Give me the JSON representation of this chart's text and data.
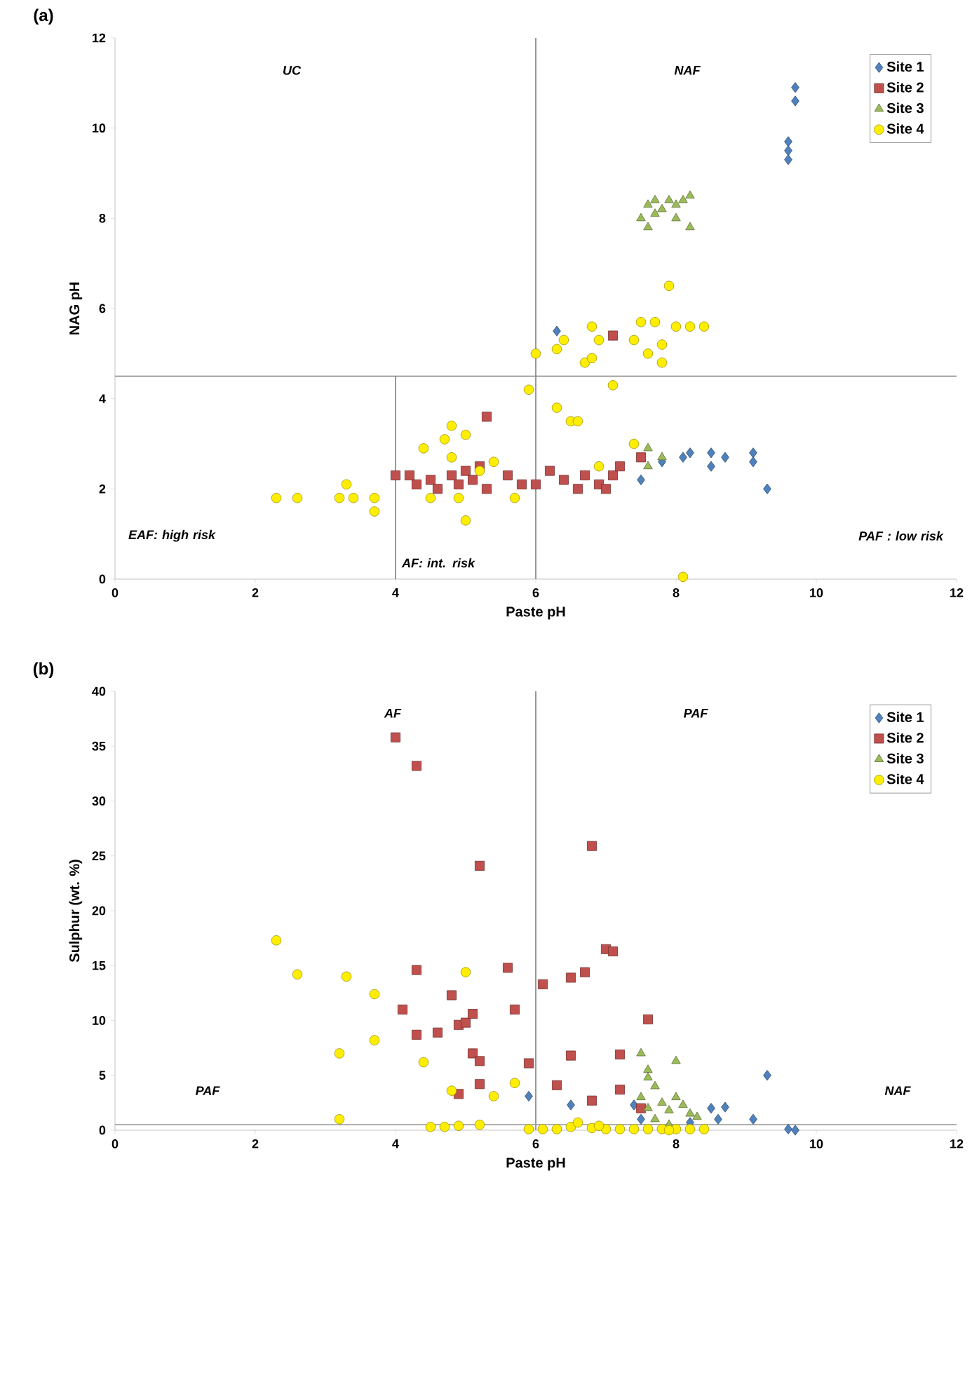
{
  "chart_data": [
    {
      "type": "scatter",
      "title": "(a)",
      "xlabel": "Paste pH",
      "ylabel": "NAG pH",
      "xlim": [
        0,
        12
      ],
      "ylim": [
        0,
        12
      ],
      "xticks": [
        0,
        2,
        4,
        6,
        8,
        10,
        12
      ],
      "yticks": [
        0,
        2,
        4,
        6,
        8,
        10,
        12
      ],
      "legend": "top right",
      "ref_lines": [
        {
          "axis": "x",
          "value": 6,
          "color": "#808080"
        },
        {
          "axis": "y",
          "value": 4.5,
          "color": "#808080"
        },
        {
          "axis": "x",
          "value": 4,
          "color": "#808080"
        }
      ],
      "annotations": [
        "UC",
        "NAF",
        "EAF: high risk",
        "AF: int. risk",
        "PAF : low risk"
      ],
      "series": [
        {
          "name": "Site 1",
          "color": "#4f81bd",
          "marker": "diamond",
          "x": [
            9.7,
            9.7,
            9.6,
            9.6,
            9.6,
            6.3,
            7.5,
            7.8,
            8.1,
            8.2,
            8.5,
            8.5,
            8.7,
            9.1,
            9.1,
            9.3
          ],
          "values": [
            10.9,
            10.6,
            9.7,
            9.5,
            9.3,
            5.5,
            2.2,
            2.6,
            2.7,
            2.8,
            2.8,
            2.5,
            2.7,
            2.8,
            2.6,
            2.0
          ]
        },
        {
          "name": "Site 2",
          "color": "#c0504d",
          "marker": "square",
          "x": [
            4.0,
            4.2,
            4.3,
            4.5,
            4.6,
            4.8,
            4.9,
            5.0,
            5.1,
            5.2,
            5.3,
            5.3,
            5.6,
            5.8,
            6.0,
            6.2,
            6.4,
            6.6,
            6.7,
            6.9,
            7.0,
            7.1,
            7.2,
            7.5,
            7.1
          ],
          "values": [
            2.3,
            2.3,
            2.1,
            2.2,
            2.0,
            2.3,
            2.1,
            2.4,
            2.2,
            2.5,
            2.0,
            3.6,
            2.3,
            2.1,
            2.1,
            2.4,
            2.2,
            2.0,
            2.3,
            2.1,
            2.0,
            2.3,
            2.5,
            2.7,
            5.4
          ]
        },
        {
          "name": "Site 3",
          "color": "#9bbb59",
          "marker": "triangle",
          "x": [
            7.5,
            7.6,
            7.6,
            7.7,
            7.8,
            7.9,
            8.0,
            8.0,
            8.1,
            8.2,
            8.2,
            7.7,
            7.6,
            7.6,
            7.8
          ],
          "values": [
            8.0,
            8.3,
            7.8,
            8.4,
            8.2,
            8.4,
            8.0,
            8.3,
            8.4,
            8.5,
            7.8,
            8.1,
            2.9,
            2.5,
            2.7
          ]
        },
        {
          "name": "Site 4",
          "color": "#ffee00",
          "marker": "circle",
          "x": [
            2.3,
            2.6,
            3.2,
            3.3,
            3.4,
            3.7,
            3.7,
            4.4,
            4.5,
            4.7,
            4.8,
            4.8,
            4.9,
            5.0,
            5.0,
            5.2,
            5.4,
            5.7,
            5.9,
            6.0,
            6.3,
            6.3,
            6.4,
            6.5,
            6.6,
            6.7,
            6.8,
            6.8,
            6.9,
            6.9,
            7.1,
            7.4,
            7.4,
            7.5,
            7.6,
            7.7,
            7.8,
            7.8,
            7.9,
            8.0,
            8.2,
            8.4,
            8.1
          ],
          "values": [
            1.8,
            1.8,
            1.8,
            2.1,
            1.8,
            1.8,
            1.5,
            2.9,
            1.8,
            3.1,
            3.4,
            2.7,
            1.8,
            1.3,
            3.2,
            2.4,
            2.6,
            1.8,
            4.2,
            5.0,
            3.8,
            5.1,
            5.3,
            3.5,
            3.5,
            4.8,
            5.6,
            4.9,
            5.3,
            2.5,
            4.3,
            3.0,
            5.3,
            5.7,
            5.0,
            5.7,
            5.2,
            4.8,
            6.5,
            5.6,
            5.6,
            5.6,
            0.05
          ]
        }
      ]
    },
    {
      "type": "scatter",
      "title": "(b)",
      "xlabel": "Paste pH",
      "ylabel": "Sulphur (wt. %)",
      "xlim": [
        0,
        12
      ],
      "ylim": [
        0,
        40
      ],
      "xticks": [
        0,
        2,
        4,
        6,
        8,
        10,
        12
      ],
      "yticks": [
        0,
        5,
        10,
        15,
        20,
        25,
        30,
        35,
        40
      ],
      "legend": "top right",
      "ref_lines": [
        {
          "axis": "x",
          "value": 6,
          "color": "#808080"
        },
        {
          "axis": "y",
          "value": 0.5,
          "color": "#a0a0a0"
        }
      ],
      "annotations": [
        "AF",
        "PAF",
        "PAF",
        "NAF"
      ],
      "series": [
        {
          "name": "Site 1",
          "color": "#4f81bd",
          "marker": "diamond",
          "x": [
            5.9,
            6.5,
            7.4,
            7.5,
            8.5,
            8.7,
            8.6,
            9.1,
            9.3,
            9.6,
            9.7,
            8.2
          ],
          "values": [
            3.1,
            2.3,
            2.3,
            1.0,
            2.0,
            2.1,
            1.0,
            1.0,
            5.0,
            0.1,
            0.0,
            0.7
          ]
        },
        {
          "name": "Site 2",
          "color": "#c0504d",
          "marker": "square",
          "x": [
            4.0,
            4.3,
            5.2,
            6.8,
            4.1,
            4.3,
            4.3,
            4.6,
            4.8,
            4.9,
            5.0,
            5.1,
            5.1,
            5.2,
            5.2,
            4.9,
            5.6,
            5.7,
            5.9,
            6.1,
            6.3,
            6.5,
            6.5,
            6.7,
            6.8,
            7.0,
            7.1,
            7.2,
            7.2,
            7.6,
            7.5
          ],
          "values": [
            35.8,
            33.2,
            24.1,
            25.9,
            11.0,
            8.7,
            14.6,
            8.9,
            12.3,
            9.6,
            9.8,
            10.6,
            7.0,
            6.3,
            4.2,
            3.3,
            14.8,
            11.0,
            6.1,
            13.3,
            4.1,
            13.9,
            6.8,
            14.4,
            2.7,
            16.5,
            16.3,
            6.9,
            3.7,
            10.1,
            2.0
          ]
        },
        {
          "name": "Site 3",
          "color": "#9bbb59",
          "marker": "triangle",
          "x": [
            7.5,
            7.6,
            7.6,
            7.7,
            7.5,
            7.8,
            7.9,
            8.0,
            8.0,
            8.1,
            8.2,
            7.7,
            7.9,
            8.3,
            7.6
          ],
          "values": [
            7.0,
            5.5,
            4.8,
            4.0,
            3.0,
            2.5,
            1.8,
            6.3,
            3.0,
            2.3,
            1.5,
            1.0,
            0.5,
            1.2,
            2.0
          ]
        },
        {
          "name": "Site 4",
          "color": "#ffee00",
          "marker": "circle",
          "x": [
            2.3,
            2.6,
            3.2,
            3.3,
            3.2,
            3.7,
            3.7,
            4.4,
            4.5,
            4.7,
            4.8,
            4.9,
            5.0,
            5.2,
            5.4,
            5.7,
            5.9,
            6.1,
            6.3,
            6.5,
            6.6,
            6.8,
            7.0,
            7.4,
            7.6,
            7.8,
            8.0,
            8.2,
            8.4,
            7.2,
            6.9,
            7.9
          ],
          "values": [
            17.3,
            14.2,
            7.0,
            14.0,
            1.0,
            12.4,
            8.2,
            6.2,
            0.3,
            0.3,
            3.6,
            0.4,
            14.4,
            0.5,
            3.1,
            4.3,
            0.1,
            0.1,
            0.1,
            0.3,
            0.7,
            0.2,
            0.1,
            0.1,
            0.1,
            0.1,
            0.1,
            0.1,
            0.1,
            0.1,
            0.4,
            0.0
          ]
        }
      ]
    }
  ]
}
